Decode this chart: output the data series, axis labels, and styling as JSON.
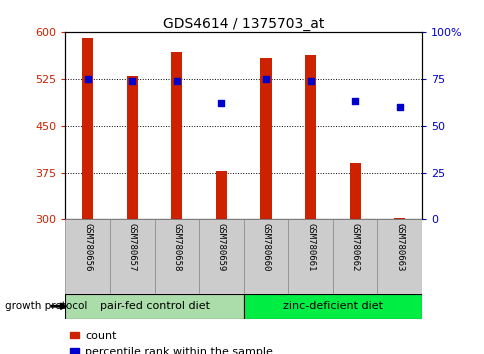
{
  "title": "GDS4614 / 1375703_at",
  "samples": [
    "GSM780656",
    "GSM780657",
    "GSM780658",
    "GSM780659",
    "GSM780660",
    "GSM780661",
    "GSM780662",
    "GSM780663"
  ],
  "counts": [
    590,
    530,
    568,
    377,
    558,
    563,
    390,
    302
  ],
  "percentiles": [
    75,
    74,
    74,
    62,
    75,
    74,
    63,
    60
  ],
  "ylim_left": [
    300,
    600
  ],
  "ylim_right": [
    0,
    100
  ],
  "yticks_left": [
    300,
    375,
    450,
    525,
    600
  ],
  "yticks_right": [
    0,
    25,
    50,
    75,
    100
  ],
  "ytick_labels_left": [
    "300",
    "375",
    "450",
    "525",
    "600"
  ],
  "ytick_labels_right": [
    "0",
    "25",
    "50",
    "75",
    "100%"
  ],
  "bar_color": "#cc2200",
  "dot_color": "#0000cc",
  "groups": [
    {
      "label": "pair-fed control diet",
      "start": 0,
      "end": 4,
      "color": "#aaddaa"
    },
    {
      "label": "zinc-deficient diet",
      "start": 4,
      "end": 8,
      "color": "#00ee44"
    }
  ],
  "group_label": "growth protocol",
  "legend_count": "count",
  "legend_percentile": "percentile rank within the sample",
  "background_color": "#ffffff",
  "label_color_left": "#cc2200",
  "label_color_right": "#0000cc",
  "xlabels_bg": "#cccccc",
  "xlabels_border": "#888888"
}
